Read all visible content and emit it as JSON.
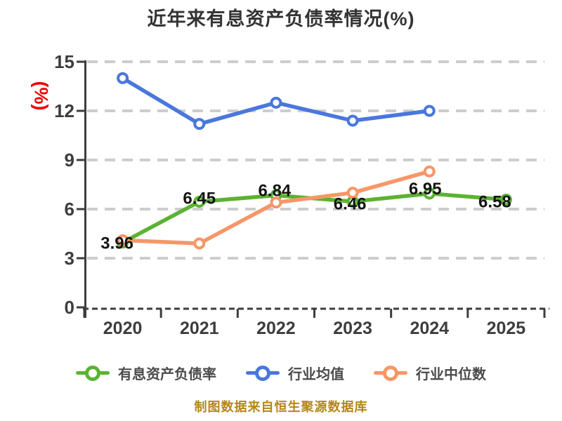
{
  "title": "近年来有息资产负债率情况(%)",
  "y_axis_unit": "(%)",
  "footer_note": "制图数据来自恒生聚源数据库",
  "colors": {
    "title": "#333333",
    "axis": "#3d3d3d",
    "axis_text": "#3d3d3d",
    "grid": "#cdcdcd",
    "point_label": "#141414",
    "y_unit_red": "#ee0000",
    "footer_gold": "#b5861b",
    "legend_text": "#4a4a4a",
    "background": "#ffffff"
  },
  "chart_data": {
    "type": "line",
    "title": "近年来有息资产负债率情况(%)",
    "categories": [
      "2020",
      "2021",
      "2022",
      "2023",
      "2024",
      "2025"
    ],
    "xlabel": "",
    "ylabel": "(%)",
    "ylim": [
      0,
      15
    ],
    "y_ticks": [
      0,
      3,
      6,
      9,
      12,
      15
    ],
    "grid": "horizontal-dashed",
    "legend_position": "bottom",
    "series": [
      {
        "key": "interest-bearing-debt-ratio",
        "name": "有息资产负债率",
        "color": "#5bb331",
        "values": [
          3.96,
          6.45,
          6.84,
          6.46,
          6.95,
          6.58
        ],
        "point_labels": [
          "3.96",
          "6.45",
          "6.84",
          "6.46",
          "6.95",
          "6.58"
        ]
      },
      {
        "key": "industry-average",
        "name": "行业均值",
        "color": "#4a77de",
        "values": [
          14.0,
          11.2,
          12.5,
          11.4,
          12.0,
          null
        ],
        "point_labels": null
      },
      {
        "key": "industry-median",
        "name": "行业中位数",
        "color": "#f79667",
        "values": [
          4.1,
          3.9,
          6.4,
          7.0,
          8.3,
          null
        ],
        "point_labels": null
      }
    ]
  }
}
